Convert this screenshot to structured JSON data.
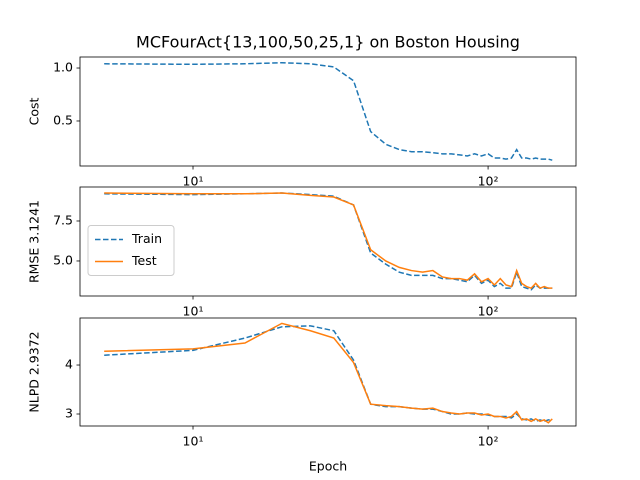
{
  "chart_data": [
    {
      "type": "line",
      "title": "MCFourAct{13,100,50,25,1} on Boston Housing",
      "ylabel": "Cost",
      "x": [
        5,
        10,
        15,
        20,
        25,
        30,
        35,
        40,
        45,
        50,
        55,
        60,
        65,
        70,
        75,
        80,
        85,
        90,
        95,
        100,
        105,
        110,
        115,
        120,
        125,
        130,
        135,
        140,
        145,
        150,
        155,
        160,
        165
      ],
      "values": [
        1.04,
        1.035,
        1.04,
        1.05,
        1.04,
        1.01,
        0.88,
        0.4,
        0.28,
        0.23,
        0.21,
        0.21,
        0.2,
        0.19,
        0.19,
        0.18,
        0.17,
        0.19,
        0.17,
        0.19,
        0.15,
        0.15,
        0.14,
        0.15,
        0.23,
        0.15,
        0.15,
        0.14,
        0.15,
        0.14,
        0.14,
        0.14,
        0.13
      ],
      "color": "#1f77b4",
      "linestyle": "dashed",
      "xscale": "log",
      "xlim": [
        4.14,
        198.6
      ],
      "xticks": [
        {
          "value": 10,
          "label": "10¹"
        },
        {
          "value": 100,
          "label": "10²"
        }
      ],
      "ylim": [
        0.075,
        1.104
      ],
      "yticks": [
        0.5,
        {
          "value": 1,
          "label": "1.0"
        }
      ]
    },
    {
      "type": "line",
      "ylabel": "RMSE 3.1241",
      "x": [
        5,
        10,
        15,
        20,
        25,
        30,
        35,
        40,
        45,
        50,
        55,
        60,
        65,
        70,
        75,
        80,
        85,
        90,
        95,
        100,
        105,
        110,
        115,
        120,
        125,
        130,
        135,
        140,
        145,
        150,
        155,
        160,
        165
      ],
      "series": [
        {
          "name": "Train",
          "color": "#1f77b4",
          "linestyle": "dashed",
          "values": [
            9.2,
            9.15,
            9.2,
            9.25,
            9.15,
            9.05,
            8.5,
            5.5,
            4.8,
            4.3,
            4.1,
            4.1,
            4.1,
            3.9,
            3.9,
            3.8,
            3.7,
            4.1,
            3.6,
            3.8,
            3.4,
            3.6,
            3.3,
            3.3,
            4.3,
            3.4,
            3.3,
            3.2,
            3.5,
            3.3,
            3.3,
            3.3,
            3.3
          ]
        },
        {
          "name": "Test",
          "color": "#ff7f0e",
          "linestyle": "solid",
          "values": [
            9.25,
            9.2,
            9.2,
            9.25,
            9.1,
            9.0,
            8.5,
            5.7,
            5.0,
            4.6,
            4.4,
            4.3,
            4.4,
            4.0,
            3.9,
            3.9,
            3.8,
            4.2,
            3.7,
            3.9,
            3.5,
            3.9,
            3.5,
            3.4,
            4.4,
            3.6,
            3.4,
            3.3,
            3.6,
            3.3,
            3.4,
            3.3,
            3.3
          ]
        }
      ],
      "xscale": "log",
      "legend": "center left",
      "xlim": [
        4.14,
        198.6
      ],
      "xticks": [
        {
          "value": 10,
          "label": "10¹"
        },
        {
          "value": 100,
          "label": "10²"
        }
      ],
      "ylim": [
        2.81,
        9.625
      ],
      "yticks": [
        {
          "value": 5,
          "label": "5.0"
        },
        7.5
      ]
    },
    {
      "type": "line",
      "ylabel": "NLPD 2.9372",
      "xlabel": "Epoch",
      "x": [
        5,
        10,
        15,
        20,
        25,
        30,
        35,
        40,
        45,
        50,
        55,
        60,
        65,
        70,
        75,
        80,
        85,
        90,
        95,
        100,
        105,
        110,
        115,
        120,
        125,
        130,
        135,
        140,
        145,
        150,
        155,
        160,
        165
      ],
      "series": [
        {
          "name": "Train",
          "color": "#1f77b4",
          "linestyle": "dashed",
          "values": [
            4.2,
            4.3,
            4.55,
            4.78,
            4.8,
            4.7,
            4.1,
            3.2,
            3.15,
            3.15,
            3.12,
            3.1,
            3.1,
            3.05,
            3.0,
            3.0,
            3.02,
            3.0,
            3.0,
            2.98,
            2.95,
            2.95,
            2.95,
            2.92,
            3.0,
            2.9,
            2.88,
            2.9,
            2.85,
            2.88,
            2.85,
            2.88,
            2.88
          ]
        },
        {
          "name": "Test",
          "color": "#ff7f0e",
          "linestyle": "solid",
          "values": [
            4.28,
            4.33,
            4.45,
            4.85,
            4.7,
            4.55,
            4.05,
            3.2,
            3.17,
            3.15,
            3.12,
            3.1,
            3.12,
            3.05,
            3.02,
            3.0,
            3.02,
            3.02,
            2.98,
            3.0,
            2.95,
            2.95,
            2.92,
            2.95,
            3.05,
            2.88,
            2.9,
            2.85,
            2.9,
            2.85,
            2.88,
            2.82,
            2.9
          ]
        }
      ],
      "xscale": "log",
      "xlim": [
        4.14,
        198.6
      ],
      "xticks": [
        {
          "value": 10,
          "label": "10¹"
        },
        {
          "value": 100,
          "label": "10²"
        }
      ],
      "ylim": [
        2.755,
        4.96
      ],
      "yticks": [
        3,
        4
      ]
    }
  ]
}
